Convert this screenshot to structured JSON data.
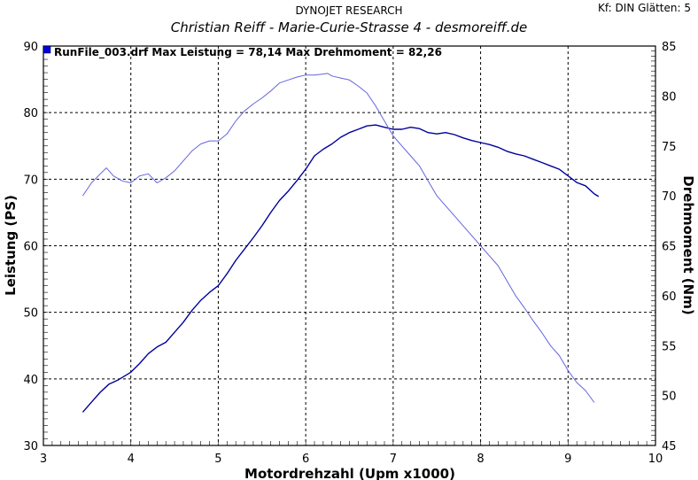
{
  "header": {
    "title": "DYNOJET RESEARCH",
    "subtitle": "Christian Reiff - Marie-Curie-Strasse 4 - desmoreiff.de",
    "info": "Kf: DIN  Glätten: 5"
  },
  "chart_data": {
    "type": "line",
    "xlabel": "Motordrehzahl (Upm x1000)",
    "ylabel_left": "Leistung (PS)",
    "ylabel_right": "Drehmoment (Nm)",
    "xlim": [
      3,
      10
    ],
    "ylim_left": [
      30,
      90
    ],
    "ylim_right": [
      45,
      85
    ],
    "x_ticks": [
      "3",
      "4",
      "5",
      "6",
      "7",
      "8",
      "9",
      "10"
    ],
    "y_left_ticks": [
      "30",
      "40",
      "50",
      "60",
      "70",
      "80",
      "90"
    ],
    "y_right_ticks": [
      "45",
      "50",
      "55",
      "60",
      "65",
      "70",
      "75",
      "80",
      "85"
    ],
    "grid": true,
    "annotation": "RunFile_003.drf Max Leistung = 78,14     Max Drehmoment = 82,26",
    "colors": {
      "power": "#00009c",
      "torque": "#6464dc",
      "grid": "#000000",
      "frame": "#000000"
    },
    "series": [
      {
        "name": "Leistung",
        "axis": "left",
        "x": [
          3.45,
          3.55,
          3.65,
          3.75,
          3.85,
          4.0,
          4.1,
          4.2,
          4.3,
          4.4,
          4.5,
          4.6,
          4.7,
          4.8,
          4.9,
          5.0,
          5.1,
          5.2,
          5.3,
          5.4,
          5.5,
          5.6,
          5.7,
          5.8,
          5.9,
          6.0,
          6.1,
          6.2,
          6.3,
          6.4,
          6.5,
          6.6,
          6.7,
          6.8,
          6.9,
          7.0,
          7.1,
          7.2,
          7.3,
          7.4,
          7.5,
          7.6,
          7.7,
          7.8,
          7.9,
          8.0,
          8.1,
          8.2,
          8.3,
          8.4,
          8.5,
          8.6,
          8.7,
          8.8,
          8.9,
          9.0,
          9.1,
          9.2,
          9.3,
          9.35
        ],
        "values": [
          35.0,
          36.5,
          38.0,
          39.2,
          39.8,
          41.0,
          42.3,
          43.8,
          44.8,
          45.5,
          47.0,
          48.5,
          50.3,
          51.8,
          53.0,
          54.0,
          55.8,
          57.8,
          59.5,
          61.2,
          63.0,
          65.0,
          66.8,
          68.2,
          69.8,
          71.5,
          73.5,
          74.5,
          75.3,
          76.3,
          77.0,
          77.5,
          78.0,
          78.14,
          77.8,
          77.5,
          77.5,
          77.8,
          77.6,
          77.0,
          76.8,
          77.0,
          76.7,
          76.2,
          75.8,
          75.5,
          75.2,
          74.8,
          74.2,
          73.8,
          73.5,
          73.0,
          72.5,
          72.0,
          71.5,
          70.5,
          69.5,
          69.0,
          67.8,
          67.4
        ]
      },
      {
        "name": "Drehmoment",
        "axis": "right",
        "x": [
          3.45,
          3.55,
          3.65,
          3.72,
          3.8,
          3.9,
          4.0,
          4.1,
          4.2,
          4.3,
          4.4,
          4.5,
          4.6,
          4.7,
          4.8,
          4.9,
          5.0,
          5.1,
          5.2,
          5.3,
          5.4,
          5.5,
          5.6,
          5.7,
          5.8,
          5.9,
          6.0,
          6.1,
          6.2,
          6.25,
          6.3,
          6.4,
          6.5,
          6.6,
          6.7,
          6.8,
          6.9,
          7.0,
          7.1,
          7.2,
          7.3,
          7.4,
          7.5,
          7.6,
          7.7,
          7.8,
          7.9,
          8.0,
          8.1,
          8.2,
          8.3,
          8.4,
          8.5,
          8.6,
          8.7,
          8.8,
          8.9,
          9.0,
          9.1,
          9.2,
          9.3
        ],
        "values": [
          70.0,
          71.3,
          72.2,
          72.8,
          72.0,
          71.5,
          71.3,
          72.0,
          72.2,
          71.3,
          71.8,
          72.5,
          73.5,
          74.5,
          75.2,
          75.5,
          75.5,
          76.2,
          77.5,
          78.5,
          79.2,
          79.8,
          80.5,
          81.3,
          81.6,
          81.9,
          82.1,
          82.1,
          82.2,
          82.26,
          82.0,
          81.8,
          81.6,
          81.0,
          80.3,
          79.0,
          77.5,
          76.0,
          75.0,
          74.0,
          73.0,
          71.5,
          70.0,
          69.0,
          68.0,
          67.0,
          66.0,
          65.0,
          64.0,
          63.0,
          61.5,
          60.0,
          58.8,
          57.5,
          56.3,
          55.0,
          54.0,
          52.5,
          51.3,
          50.5,
          49.3
        ]
      }
    ]
  }
}
